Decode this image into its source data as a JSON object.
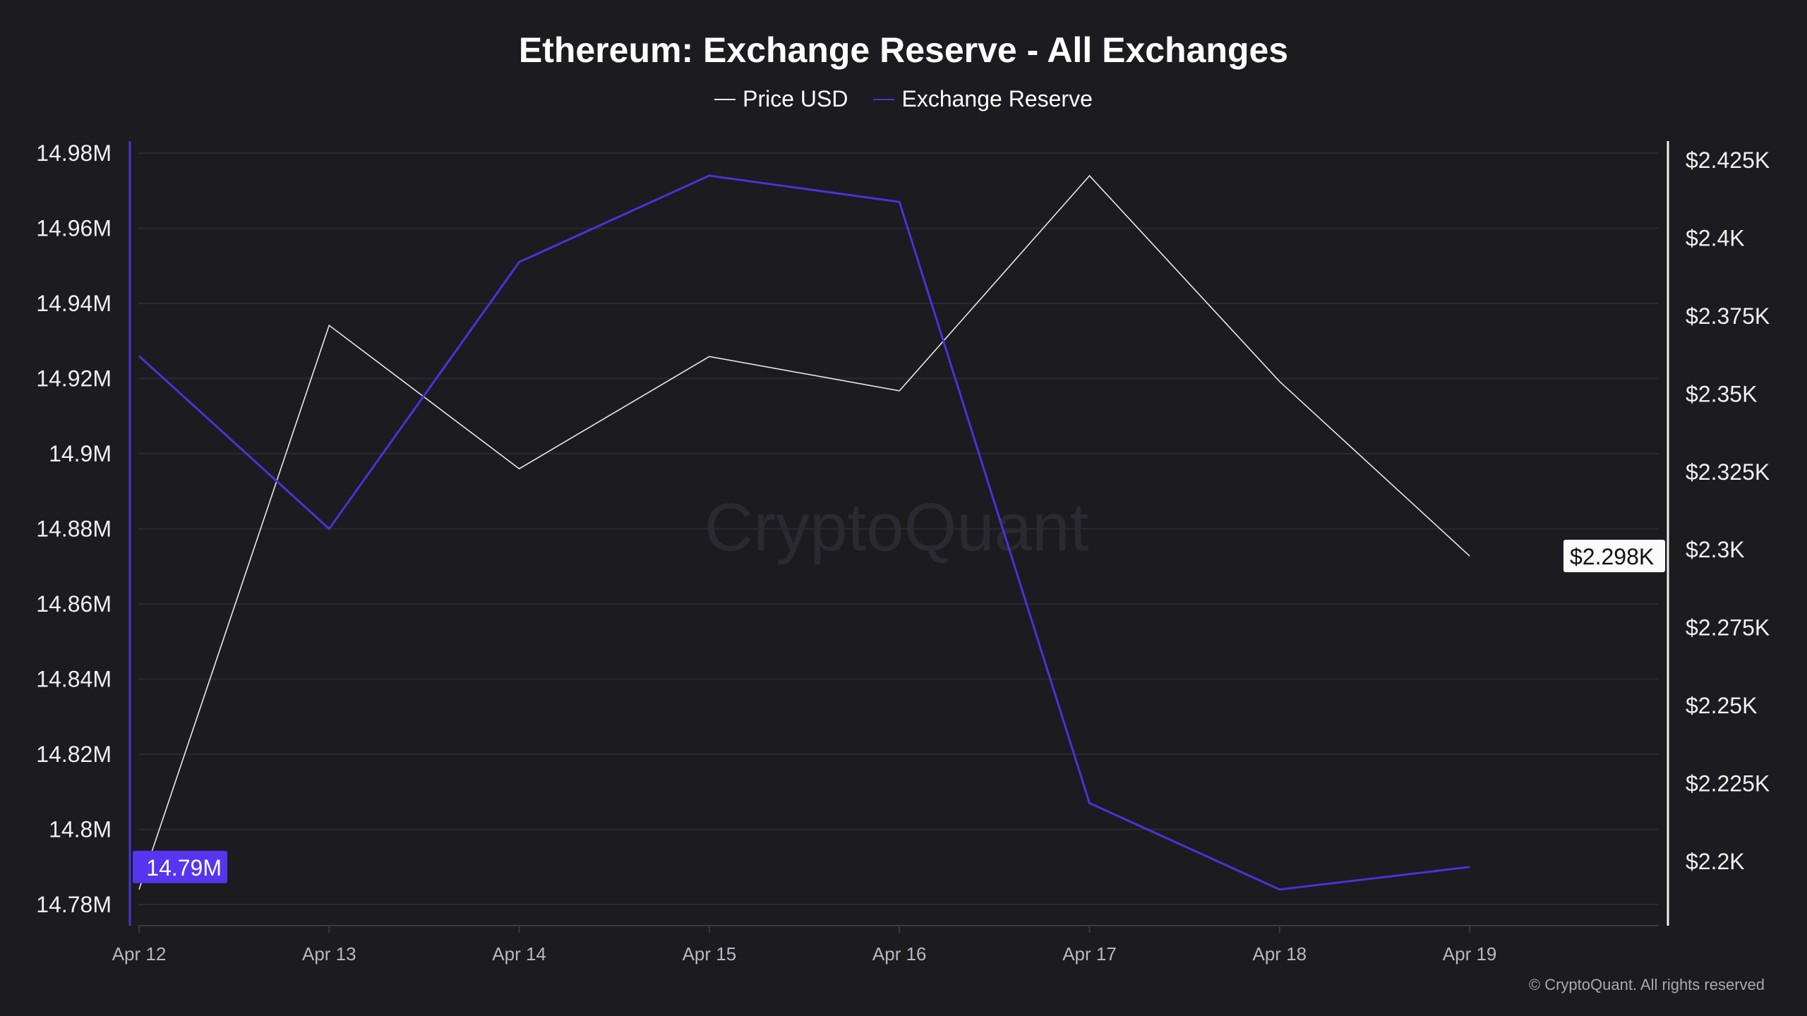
{
  "chart_data": {
    "type": "line",
    "title": "Ethereum: Exchange Reserve - All Exchanges",
    "categories": [
      "Apr 12",
      "Apr 13",
      "Apr 14",
      "Apr 15",
      "Apr 16",
      "Apr 17",
      "Apr 18",
      "Apr 19"
    ],
    "series": [
      {
        "name": "Price USD",
        "axis": "right",
        "color": "#e8e8ec",
        "values": [
          2.191,
          2.372,
          2.326,
          2.362,
          2.351,
          2.42,
          2.354,
          2.298
        ]
      },
      {
        "name": "Exchange Reserve",
        "axis": "left",
        "color": "#4b32d8",
        "values": [
          14.926,
          14.88,
          14.951,
          14.974,
          14.967,
          14.807,
          14.784,
          14.79
        ]
      }
    ],
    "left_axis": {
      "ylim": [
        14.78,
        14.98
      ],
      "ticks": [
        "14.98M",
        "14.96M",
        "14.94M",
        "14.92M",
        "14.9M",
        "14.88M",
        "14.86M",
        "14.84M",
        "14.82M",
        "14.8M",
        "14.78M"
      ],
      "current_label": "14.79M",
      "current_color": "#5535f0"
    },
    "right_axis": {
      "ylim": [
        2.2,
        2.425
      ],
      "ticks": [
        "$2.425K",
        "$2.4K",
        "$2.375K",
        "$2.35K",
        "$2.325K",
        "$2.3K",
        "$2.275K",
        "$2.25K",
        "$2.225K",
        "$2.2K"
      ],
      "current_label": "$2.298K"
    },
    "grid": true,
    "legend_placement": "top-center",
    "watermark": "CryptoQuant"
  },
  "copyright": "© CryptoQuant. All rights reserved"
}
